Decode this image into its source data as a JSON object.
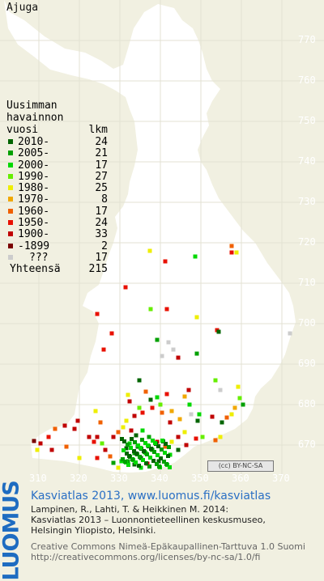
{
  "species": "Ajuga",
  "legend": {
    "header_line1": "Uusimman",
    "header_line2": "havainnon",
    "header_col_year": "vuosi",
    "header_col_count": "lkm",
    "entries": [
      {
        "label": "2010-",
        "count": "24",
        "color": "#006400"
      },
      {
        "label": "2005-",
        "count": "21",
        "color": "#00a000"
      },
      {
        "label": "2000-",
        "count": "17",
        "color": "#00d800"
      },
      {
        "label": "1990-",
        "count": "27",
        "color": "#66ee00"
      },
      {
        "label": "1980-",
        "count": "25",
        "color": "#eeee00"
      },
      {
        "label": "1970-",
        "count": "8",
        "color": "#f0a800"
      },
      {
        "label": "1960-",
        "count": "17",
        "color": "#f06000"
      },
      {
        "label": "1950-",
        "count": "24",
        "color": "#e81000"
      },
      {
        "label": "1900-",
        "count": "33",
        "color": "#c00000"
      },
      {
        "label": "-1899",
        "count": "2",
        "color": "#7a0000"
      },
      {
        "label": "???",
        "count": "17",
        "color": "#cccccc"
      }
    ],
    "total_label": "Yhteensä",
    "total_count": "215"
  },
  "axis": {
    "y_labels": [
      "770",
      "760",
      "750",
      "740",
      "730",
      "720",
      "710",
      "700",
      "690",
      "680",
      "670"
    ],
    "x_labels": [
      "310",
      "320",
      "330",
      "340",
      "350",
      "360",
      "370"
    ]
  },
  "license_badge": "BY-NC-SA",
  "logo_text": "LUOMUS",
  "credits": {
    "title": "Kasviatlas 2013, www.luomus.fi/kasviatlas",
    "cite_line1": "Lampinen, R., Lahti, T. & Heikkinen M. 2014:",
    "cite_line2": "Kasviatlas 2013 – Luonnontieteellinen keskusmuseo,",
    "cite_line3": "Helsingin Yliopisto, Helsinki.",
    "license_line1": "Creative Commons Nimeä-Epäkaupallinen-Tarttuva 1.0 Suomi",
    "license_line2": "http://creativecommons.org/licenses/by-nc-sa/1.0/fi"
  },
  "colors": {
    "background": "#f1f0e1",
    "land": "#ffffff",
    "grid": "#e2e1d1",
    "accent_blue": "#2a6fc4"
  }
}
